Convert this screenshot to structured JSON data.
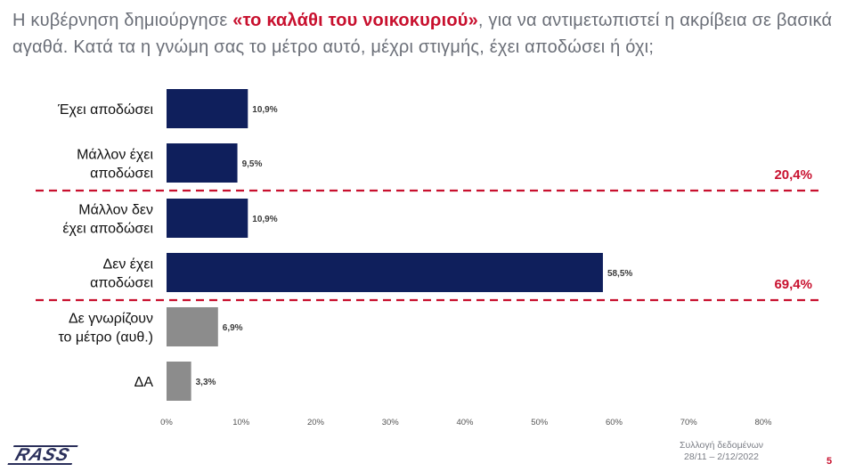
{
  "question": {
    "part1": "Η κυβέρνηση δημιούργησε ",
    "highlight": "«το καλάθι του νοικοκυριού»",
    "part2": ", για να αντιμετωπιστεί η ακρίβεια σε βασικά αγαθά. Κατά τα η γνώμη σας το μέτρο αυτό, μέχρι στιγμής, έχει αποδώσει ή όχι;"
  },
  "chart_data": {
    "type": "bar",
    "orientation": "horizontal",
    "categories": [
      [
        "Έχει αποδώσει"
      ],
      [
        "Μάλλον έχει",
        "αποδώσει"
      ],
      [
        "Μάλλον δεν",
        "έχει αποδώσει"
      ],
      [
        "Δεν έχει",
        "αποδώσει"
      ],
      [
        "Δε γνωρίζουν",
        "το μέτρο (αυθ.)"
      ],
      [
        "ΔΑ"
      ]
    ],
    "values": [
      10.9,
      9.5,
      10.9,
      58.5,
      6.9,
      3.3
    ],
    "value_labels": [
      "10,9%",
      "9,5%",
      "10,9%",
      "58,5%",
      "6,9%",
      "3,3%"
    ],
    "bar_colors": [
      "#0f1f5c",
      "#0f1f5c",
      "#0f1f5c",
      "#0f1f5c",
      "#8c8c8c",
      "#8c8c8c"
    ],
    "xlim": [
      0,
      80
    ],
    "x_ticks": [
      0,
      10,
      20,
      30,
      40,
      50,
      60,
      70,
      80
    ],
    "x_tick_labels": [
      "0%",
      "10%",
      "20%",
      "30%",
      "40%",
      "50%",
      "60%",
      "70%",
      "80%"
    ],
    "grid": false,
    "group_totals": [
      {
        "label": "20,4%",
        "after_bar_index": 1
      },
      {
        "label": "69,4%",
        "after_bar_index": 3
      }
    ],
    "separator_color": "#c8102e"
  },
  "footer": {
    "logo": "RASS",
    "collection_label": "Συλλογή δεδομένων",
    "collection_dates": "28/11 – 2/12/2022",
    "page_number": "5"
  }
}
